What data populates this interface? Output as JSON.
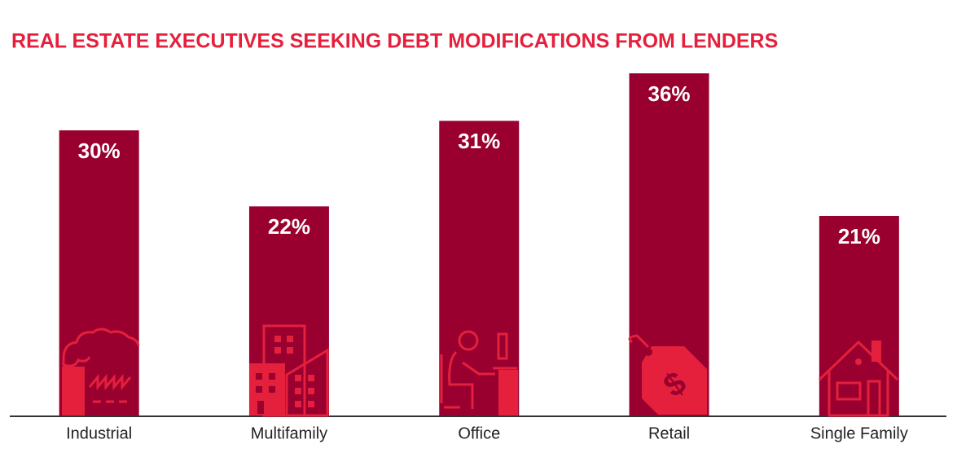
{
  "chart_data": {
    "type": "bar",
    "title": "REAL ESTATE EXECUTIVES SEEKING DEBT MODIFICATIONS FROM LENDERS",
    "categories": [
      "Industrial",
      "Multifamily",
      "Office",
      "Retail",
      "Single Family"
    ],
    "values": [
      30,
      22,
      31,
      36,
      21
    ],
    "value_labels": [
      "30%",
      "22%",
      "31%",
      "36%",
      "21%"
    ],
    "color": "#9a002f"
  }
}
